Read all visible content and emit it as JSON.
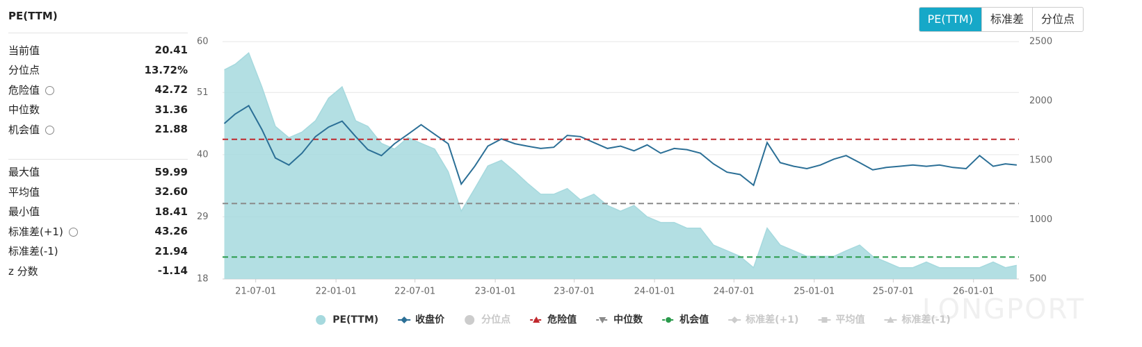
{
  "title": "PE(TTM)",
  "tabs": [
    {
      "label": "PE(TTM)",
      "active": true
    },
    {
      "label": "标准差",
      "active": false
    },
    {
      "label": "分位点",
      "active": false
    }
  ],
  "stats": [
    [
      {
        "label": "当前值",
        "value": 20.41
      },
      {
        "label": "分位点",
        "value": 13.72,
        "value_label": "13.72%"
      },
      {
        "label": "危险值",
        "value": 42.72,
        "settings": true
      },
      {
        "label": "中位数",
        "value": 31.36
      },
      {
        "label": "机会值",
        "value": 21.88,
        "settings": true
      }
    ],
    [
      {
        "label": "最大值",
        "value": 59.99
      },
      {
        "label": "平均值",
        "value": 32.6,
        "value_label": "32.60"
      },
      {
        "label": "最小值",
        "value": 18.41
      },
      {
        "label": "标准差(+1)",
        "value": 43.26,
        "settings": true
      },
      {
        "label": "标准差(-1)",
        "value": 21.94
      },
      {
        "label": "z 分数",
        "value": -1.14
      }
    ]
  ],
  "watermark": "LONGPORT",
  "chart_data": {
    "type": "area",
    "x": [
      "21-04-20",
      "21-05-15",
      "21-06-15",
      "21-07-15",
      "21-08-15",
      "21-09-15",
      "21-10-15",
      "21-11-15",
      "21-12-15",
      "22-01-15",
      "22-02-15",
      "22-03-15",
      "22-04-15",
      "22-05-15",
      "22-06-15",
      "22-07-15",
      "22-08-15",
      "22-09-15",
      "22-10-15",
      "22-11-15",
      "22-12-15",
      "23-01-15",
      "23-02-15",
      "23-03-15",
      "23-04-15",
      "23-05-15",
      "23-06-15",
      "23-07-15",
      "23-08-15",
      "23-09-15",
      "23-10-15",
      "23-11-15",
      "23-12-15",
      "24-01-15",
      "24-02-15",
      "24-03-15",
      "24-04-15",
      "24-05-15",
      "24-06-15",
      "24-07-15",
      "24-08-15",
      "24-09-15",
      "24-10-15",
      "24-11-15",
      "24-12-15",
      "25-01-15",
      "25-02-15",
      "25-03-15",
      "25-04-15",
      "25-05-15",
      "25-06-15",
      "25-07-15",
      "25-08-15",
      "25-09-15",
      "25-10-15",
      "25-11-15",
      "25-12-15",
      "26-01-15",
      "26-02-15",
      "26-03-15",
      "26-04-10"
    ],
    "xlim": [
      "21-04-16",
      "26-04-15"
    ],
    "xticks": [
      "21-07-01",
      "22-01-01",
      "22-07-01",
      "23-01-01",
      "23-07-01",
      "24-01-01",
      "24-07-01",
      "25-01-01",
      "25-07-01",
      "26-01-01"
    ],
    "ylim": [
      18,
      60
    ],
    "yticks": [
      18,
      29,
      40,
      51,
      60
    ],
    "y2lim": [
      500,
      2500
    ],
    "y2ticks": [
      500,
      1000,
      1500,
      2000,
      2500
    ],
    "grid": true,
    "series": [
      {
        "name": "PE(TTM)",
        "type": "area",
        "color": "#a6d9de",
        "symbol": "circle",
        "values": [
          55,
          56,
          58,
          52,
          45,
          43,
          44,
          46,
          50,
          52,
          46,
          45,
          42,
          41,
          43,
          42,
          41,
          37,
          30,
          34,
          38,
          39,
          37,
          35,
          33,
          33,
          34,
          32,
          33,
          31,
          30,
          31,
          29,
          28,
          28,
          27,
          27,
          24,
          23,
          22,
          20,
          27,
          24,
          23,
          22,
          22,
          22,
          23,
          24,
          22,
          21,
          20,
          20,
          21,
          20,
          20,
          20,
          20,
          21,
          20,
          20.41
        ]
      },
      {
        "name": "收盘价",
        "type": "line",
        "axis": "y2",
        "color": "#2b6f96",
        "symbol": "diamond",
        "values": [
          1810,
          1890,
          1960,
          1760,
          1520,
          1460,
          1560,
          1700,
          1780,
          1830,
          1700,
          1590,
          1540,
          1640,
          1720,
          1800,
          1720,
          1640,
          1300,
          1450,
          1620,
          1680,
          1640,
          1620,
          1600,
          1610,
          1710,
          1700,
          1650,
          1600,
          1620,
          1580,
          1630,
          1560,
          1600,
          1590,
          1560,
          1470,
          1400,
          1380,
          1290,
          1650,
          1480,
          1450,
          1430,
          1460,
          1510,
          1540,
          1480,
          1420,
          1440,
          1450,
          1460,
          1450,
          1460,
          1440,
          1430,
          1540,
          1450,
          1470,
          1460
        ]
      },
      {
        "name": "分位点",
        "visible": false,
        "color": "#cccccc",
        "symbol": "circle"
      },
      {
        "name": "危险值",
        "type": "hline",
        "color": "#c0282d",
        "symbol": "triangle",
        "value": 42.72
      },
      {
        "name": "中位数",
        "type": "hline",
        "color": "#8a8a8a",
        "symbol": "triangle-down",
        "value": 31.36
      },
      {
        "name": "机会值",
        "type": "hline",
        "color": "#2a9a4b",
        "symbol": "circle",
        "value": 21.88
      },
      {
        "name": "标准差(+1)",
        "visible": false,
        "color": "#cccccc",
        "symbol": "diamond"
      },
      {
        "name": "平均值",
        "visible": false,
        "color": "#cccccc",
        "symbol": "square"
      },
      {
        "name": "标准差(-1)",
        "visible": false,
        "color": "#cccccc",
        "symbol": "triangle"
      }
    ]
  }
}
